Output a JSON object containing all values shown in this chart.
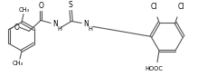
{
  "background_color": "#ffffff",
  "line_color": "#555555",
  "text_color": "#000000",
  "line_width": 0.8,
  "font_size": 5.5,
  "small_font_size": 4.8,
  "figsize": [
    2.3,
    0.84
  ],
  "dpi": 100,
  "xlim": [
    0,
    230
  ],
  "ylim": [
    0,
    84
  ]
}
